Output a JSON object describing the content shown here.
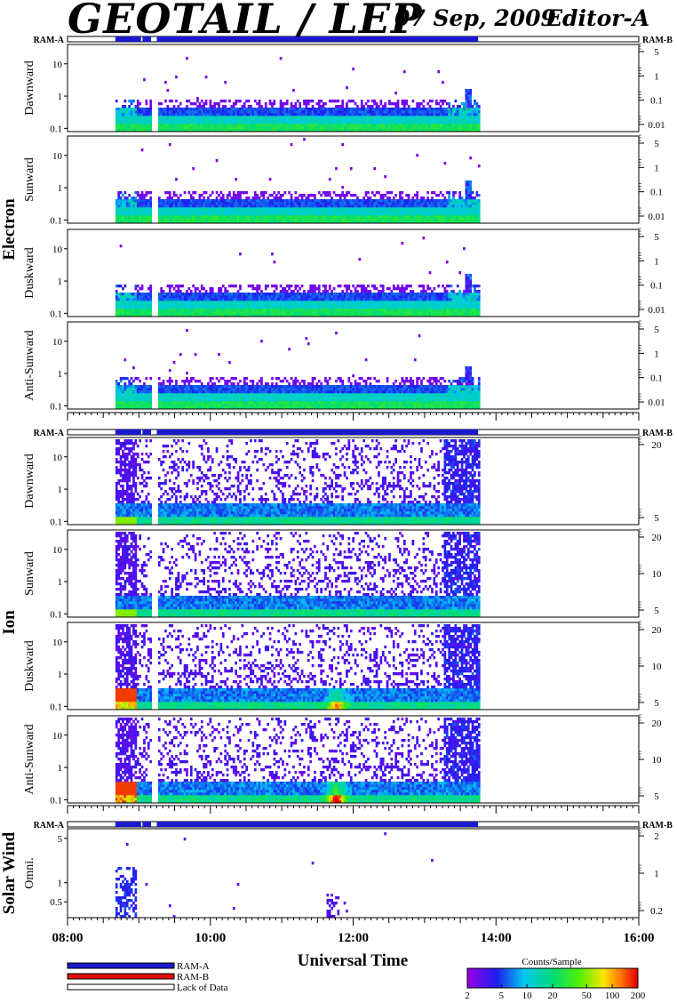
{
  "header": {
    "title": "GEOTAIL / LEP",
    "date": "07 Sep, 2009",
    "editor": "Editor-A"
  },
  "colors": {
    "ram_a": "#1a1acc",
    "ram_b": "#e01010",
    "lack_of_data": "#ffffff"
  },
  "chart_data": {
    "type": "heatmap",
    "xlabel": "Universal Time",
    "x_ticks": [
      "08:00",
      "10:00",
      "12:00",
      "14:00",
      "16:00"
    ],
    "x_range_hours": [
      8,
      16
    ],
    "data_coverage_hours": [
      8.67,
      13.75
    ],
    "data_gap_hours": [
      [
        9.03,
        9.05
      ],
      [
        9.17,
        9.25
      ]
    ],
    "groups": [
      {
        "name": "Electron",
        "ram_left": "RAM-A",
        "ram_right": "RAM-B",
        "panels": [
          {
            "label": "Dawnward",
            "left_ticks": [
              "10",
              "1",
              "0.1"
            ],
            "right_ticks": [
              "5",
              "1",
              "0.1",
              "0.01"
            ]
          },
          {
            "label": "Sunward",
            "left_ticks": [
              "10",
              "1",
              "0.1"
            ],
            "right_ticks": [
              "5",
              "1",
              "0.1",
              "0.01"
            ]
          },
          {
            "label": "Duskward",
            "left_ticks": [
              "10",
              "1",
              "0.1"
            ],
            "right_ticks": [
              "5",
              "1",
              "0.1",
              "0.01"
            ]
          },
          {
            "label": "Anti-Sunward",
            "left_ticks": [
              "10",
              "1",
              "0.1"
            ],
            "right_ticks": [
              "5",
              "1",
              "0.1",
              "0.01"
            ]
          }
        ]
      },
      {
        "name": "Ion",
        "ram_left": "RAM-A",
        "ram_right": "RAM-B",
        "panels": [
          {
            "label": "Dawnward",
            "left_ticks": [
              "10",
              "1",
              "0.1"
            ],
            "right_ticks": [
              "20",
              "5"
            ]
          },
          {
            "label": "Sunward",
            "left_ticks": [
              "10",
              "1",
              "0.1"
            ],
            "right_ticks": [
              "20",
              "10",
              "5"
            ]
          },
          {
            "label": "Duskward",
            "left_ticks": [
              "10",
              "1",
              "0.1"
            ],
            "right_ticks": [
              "20",
              "10",
              "5"
            ]
          },
          {
            "label": "Anti-Sunward",
            "left_ticks": [
              "10",
              "1",
              "0.1"
            ],
            "right_ticks": [
              "20",
              "10",
              "5"
            ]
          }
        ]
      },
      {
        "name": "Solar Wind",
        "ram_left": "RAM-A",
        "ram_right": "RAM-B",
        "panels": [
          {
            "label": "Omni.",
            "left_ticks": [
              "5",
              "1",
              "0.5"
            ],
            "right_ticks": [
              "2",
              "1",
              "0.2"
            ]
          }
        ]
      }
    ],
    "legend": {
      "items": [
        "RAM-A",
        "RAM-B",
        "Lack of Data"
      ]
    },
    "colorbar": {
      "title": "Counts/Sample",
      "ticks": [
        "2",
        "5",
        "10",
        "20",
        "50",
        "100",
        "200"
      ]
    }
  }
}
